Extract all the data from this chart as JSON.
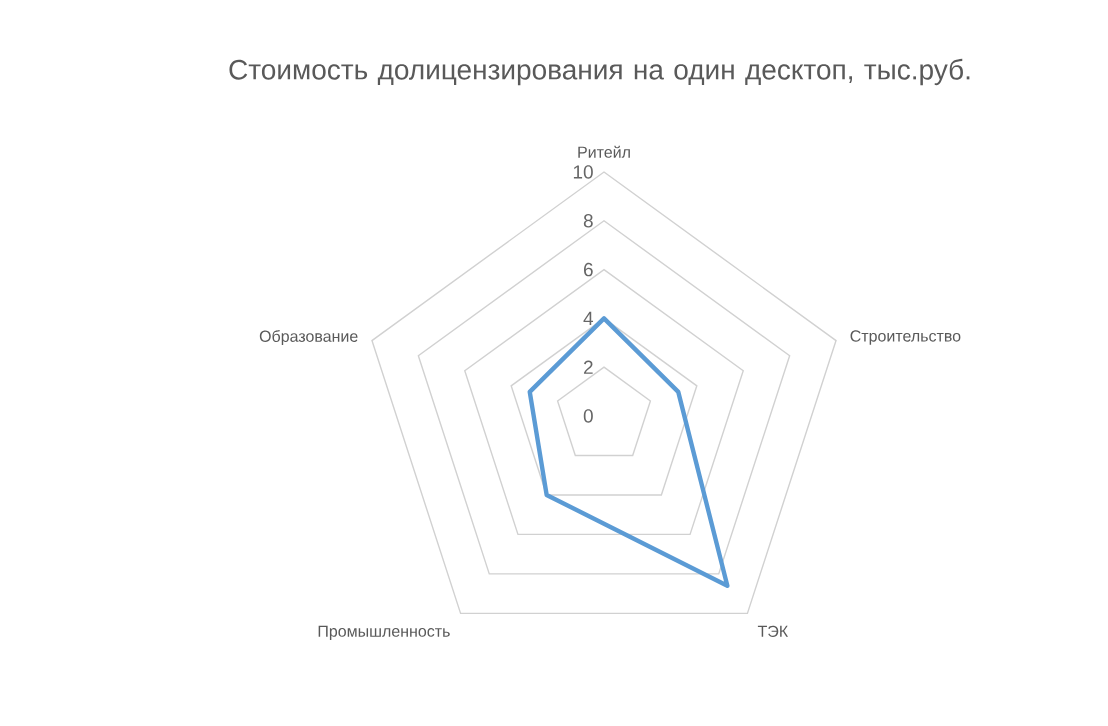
{
  "chart_data": {
    "type": "radar",
    "title": "Стоимость долицензирования на один десктоп, тыс.руб.",
    "categories": [
      "Ритейл",
      "Строительство",
      "ТЭК",
      "Промышленность",
      "Образование"
    ],
    "series": [
      {
        "color": "#5b9bd5",
        "values": [
          4,
          3.2,
          8.6,
          4,
          3.2
        ]
      }
    ],
    "ylim": [
      0,
      10
    ],
    "yticks": [
      0,
      2,
      4,
      6,
      8,
      10
    ],
    "grid": true,
    "marker": "none",
    "line_style": "solid"
  }
}
